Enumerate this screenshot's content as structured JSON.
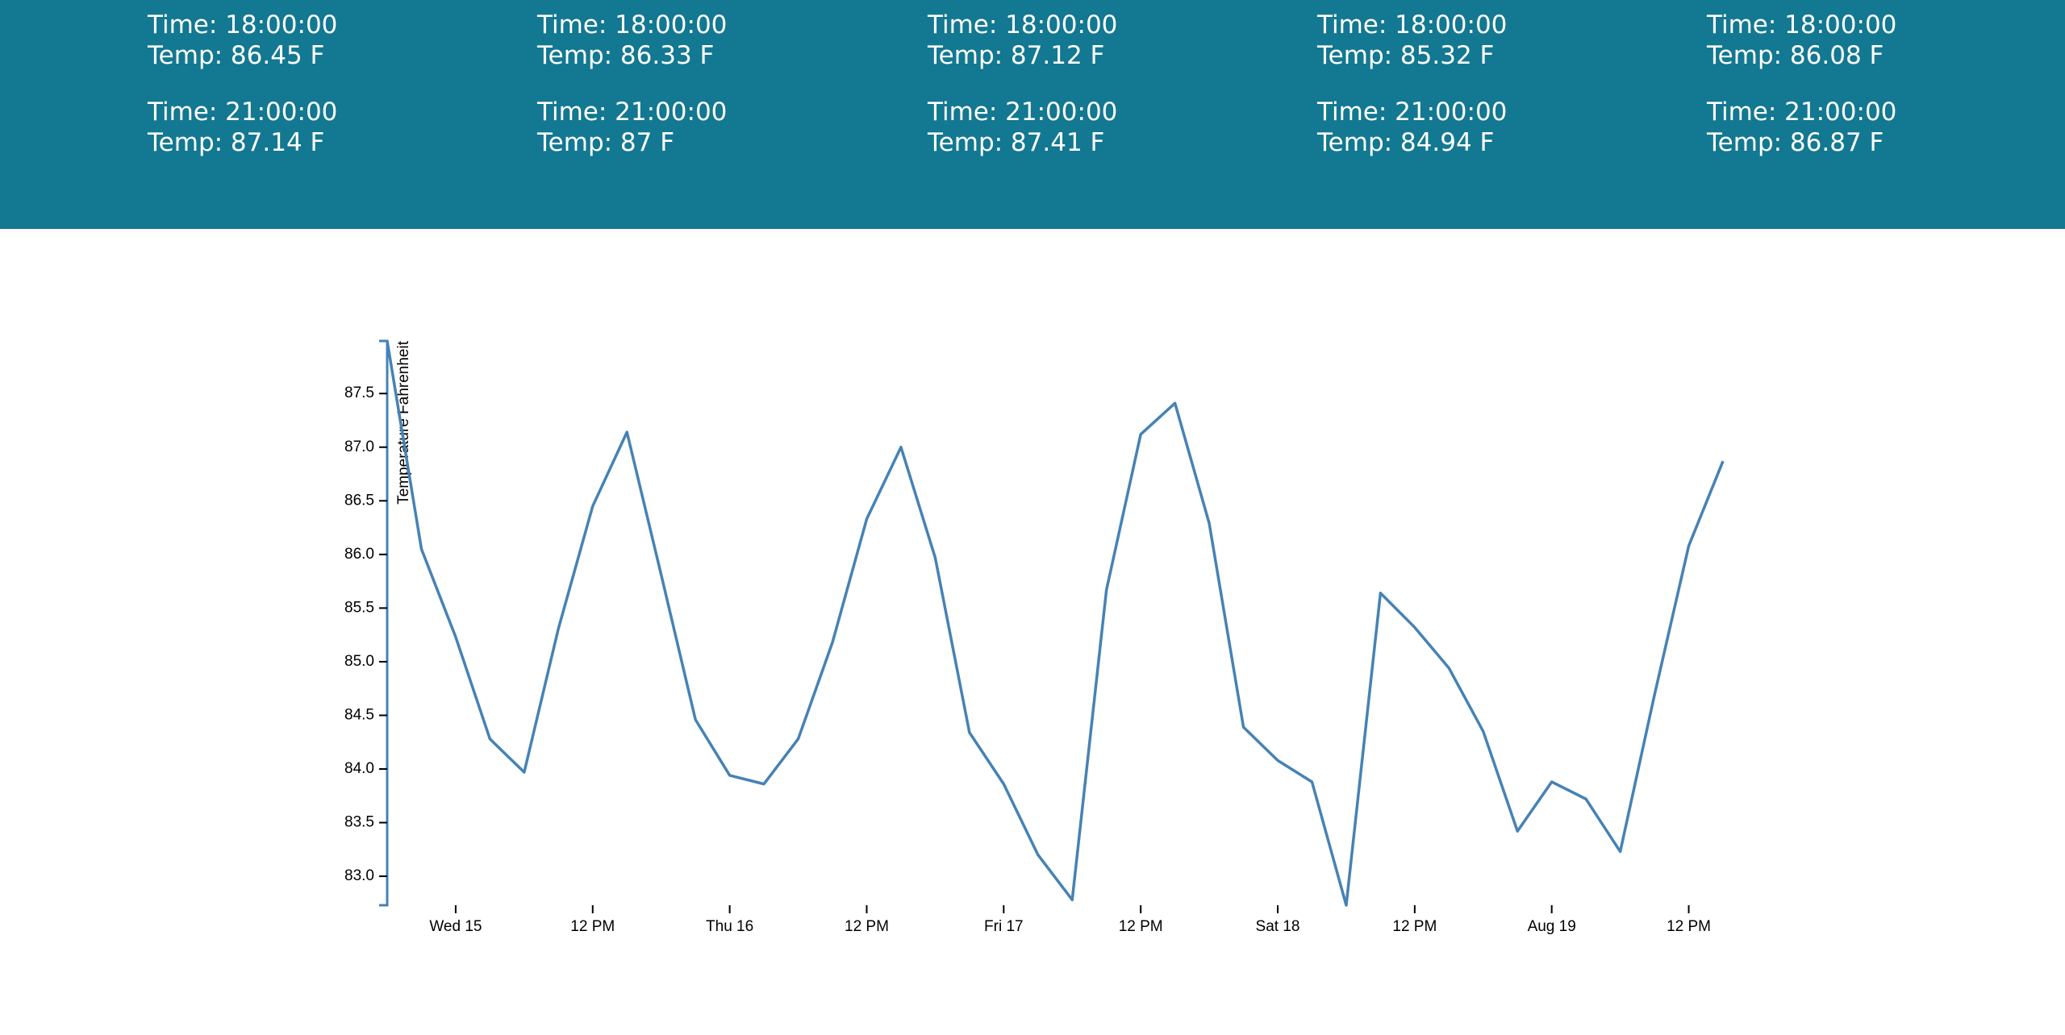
{
  "forecast": [
    {
      "entries": [
        {
          "time": "Time: 18:00:00",
          "temp": "Temp: 86.45 F"
        },
        {
          "time": "Time: 21:00:00",
          "temp": "Temp: 87.14 F"
        }
      ]
    },
    {
      "entries": [
        {
          "time": "Time: 18:00:00",
          "temp": "Temp: 86.33 F"
        },
        {
          "time": "Time: 21:00:00",
          "temp": "Temp: 87 F"
        }
      ]
    },
    {
      "entries": [
        {
          "time": "Time: 18:00:00",
          "temp": "Temp: 87.12 F"
        },
        {
          "time": "Time: 21:00:00",
          "temp": "Temp: 87.41 F"
        }
      ]
    },
    {
      "entries": [
        {
          "time": "Time: 18:00:00",
          "temp": "Temp: 85.32 F"
        },
        {
          "time": "Time: 21:00:00",
          "temp": "Temp: 84.94 F"
        }
      ]
    },
    {
      "entries": [
        {
          "time": "Time: 18:00:00",
          "temp": "Temp: 86.08 F"
        },
        {
          "time": "Time: 21:00:00",
          "temp": "Temp: 86.87 F"
        }
      ]
    }
  ],
  "chart_data": {
    "type": "line",
    "y_label": "Temperature Fahrenheit",
    "color": "#4682b4",
    "x": [
      -6,
      -3,
      0,
      3,
      6,
      9,
      12,
      15,
      18,
      21,
      24,
      27,
      30,
      33,
      36,
      39,
      42,
      45,
      48,
      51,
      54,
      57,
      60,
      63,
      66,
      69,
      72,
      75,
      78,
      81,
      84,
      87,
      90,
      93,
      96,
      99,
      102,
      105,
      108,
      111
    ],
    "values": [
      87.99,
      86.05,
      85.23,
      84.28,
      83.97,
      85.31,
      86.45,
      87.14,
      85.81,
      84.46,
      83.94,
      83.86,
      84.28,
      85.18,
      86.33,
      87,
      85.97,
      84.34,
      83.86,
      83.2,
      82.78,
      85.67,
      87.12,
      87.41,
      86.29,
      84.39,
      84.08,
      83.88,
      82.73,
      85.64,
      85.32,
      84.94,
      84.35,
      83.42,
      83.88,
      83.72,
      83.23,
      84.69,
      86.08,
      86.87
    ],
    "xlim": [
      -6,
      111
    ],
    "xticks": [
      {
        "value": 0,
        "label": "Wed 15"
      },
      {
        "value": 12,
        "label": "12 PM"
      },
      {
        "value": 24,
        "label": "Thu 16"
      },
      {
        "value": 36,
        "label": "12 PM"
      },
      {
        "value": 48,
        "label": "Fri 17"
      },
      {
        "value": 60,
        "label": "12 PM"
      },
      {
        "value": 72,
        "label": "Sat 18"
      },
      {
        "value": 84,
        "label": "12 PM"
      },
      {
        "value": 96,
        "label": "Aug 19"
      },
      {
        "value": 108,
        "label": "12 PM"
      }
    ],
    "ylim": [
      82.73,
      87.99
    ],
    "yticks": [
      {
        "value": 83,
        "label": "83.0"
      },
      83.5,
      {
        "value": 84,
        "label": "84.0"
      },
      84.5,
      {
        "value": 85,
        "label": "85.0"
      },
      85.5,
      {
        "value": 86,
        "label": "86.0"
      },
      86.5,
      {
        "value": 87,
        "label": "87.0"
      },
      87.5
    ]
  }
}
